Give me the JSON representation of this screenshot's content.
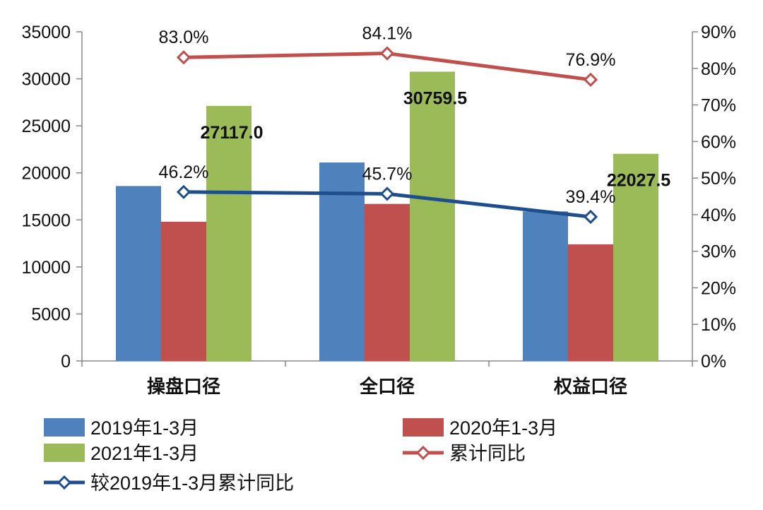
{
  "chart_data": {
    "type": "bar",
    "categories": [
      "操盘口径",
      "全口径",
      "权益口径"
    ],
    "series": [
      {
        "name": "2019年1-3月",
        "type": "bar",
        "axis": "left",
        "color": "#4F81BD",
        "values": [
          18600,
          21100,
          15900
        ]
      },
      {
        "name": "2020年1-3月",
        "type": "bar",
        "axis": "left",
        "color": "#C0504D",
        "values": [
          14800,
          16700,
          12400
        ]
      },
      {
        "name": "2021年1-3月",
        "type": "bar",
        "axis": "left",
        "color": "#9BBB59",
        "values": [
          27117.0,
          30759.5,
          22027.5
        ],
        "labels": [
          "27117.0",
          "30759.5",
          "22027.5"
        ]
      },
      {
        "name": "累计同比",
        "type": "line",
        "axis": "right",
        "color": "#C0504D",
        "values": [
          83.0,
          84.1,
          76.9
        ],
        "labels": [
          "83.0%",
          "84.1%",
          "76.9%"
        ]
      },
      {
        "name": "较2019年1-3月累计同比",
        "type": "line",
        "axis": "right",
        "color": "#1F4E8C",
        "values": [
          46.2,
          45.7,
          39.4
        ],
        "labels": [
          "46.2%",
          "45.7%",
          "39.4%"
        ]
      }
    ],
    "y_left": {
      "min": 0,
      "max": 35000,
      "step": 5000,
      "tick_labels": [
        "0",
        "5000",
        "10000",
        "15000",
        "20000",
        "25000",
        "30000",
        "35000"
      ]
    },
    "y_right": {
      "min": 0,
      "max": 90,
      "step": 10,
      "tick_labels": [
        "0%",
        "10%",
        "20%",
        "30%",
        "40%",
        "50%",
        "60%",
        "70%",
        "80%",
        "90%"
      ]
    },
    "grid": false,
    "legend_position": "bottom"
  }
}
